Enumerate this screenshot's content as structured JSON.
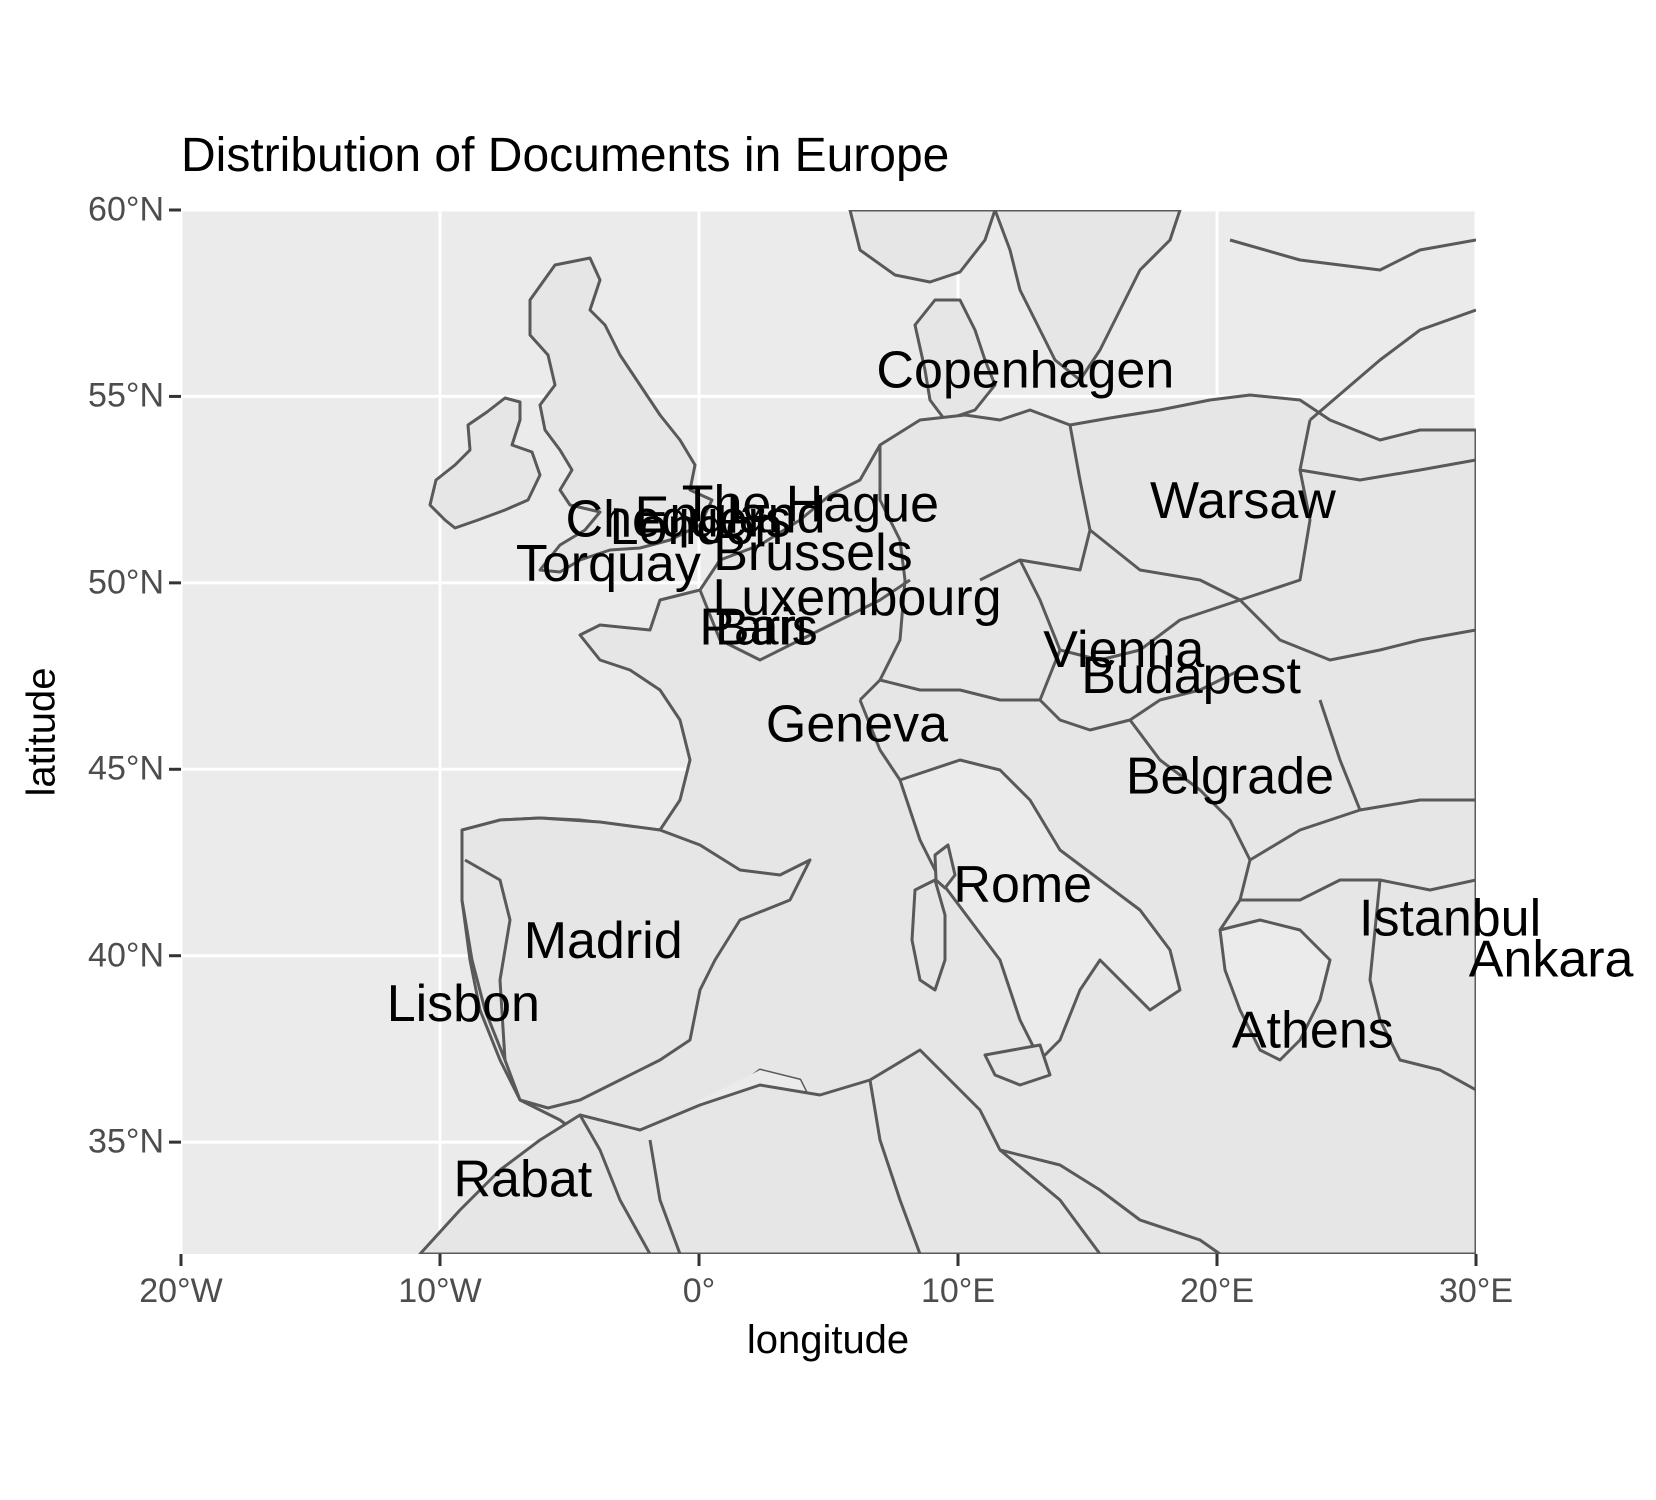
{
  "title": "Distribution of Documents in Europe",
  "xlabel": "longitude",
  "ylabel": "latitude",
  "colors": {
    "panel": "#ebebeb",
    "land": "#e6e6e6",
    "border": "#595959",
    "grid": "#ffffff",
    "tick_text": "#4d4d4d",
    "label_text": "#000000"
  },
  "map": {
    "xlim": [
      -20,
      30
    ],
    "ylim": [
      32,
      60
    ],
    "x_ticks": [
      {
        "value": -20,
        "label": "20°W"
      },
      {
        "value": -10,
        "label": "10°W"
      },
      {
        "value": 0,
        "label": "0°"
      },
      {
        "value": 10,
        "label": "10°E"
      },
      {
        "value": 20,
        "label": "20°E"
      },
      {
        "value": 30,
        "label": "30°E"
      }
    ],
    "y_ticks": [
      {
        "value": 35,
        "label": "35°N"
      },
      {
        "value": 40,
        "label": "40°N"
      },
      {
        "value": 45,
        "label": "45°N"
      },
      {
        "value": 50,
        "label": "50°N"
      },
      {
        "value": 55,
        "label": "55°N"
      },
      {
        "value": 60,
        "label": "60°N"
      }
    ],
    "cities": [
      {
        "name": "Copenhagen",
        "lon": 12.6,
        "lat": 55.7
      },
      {
        "name": "Warsaw",
        "lon": 21.0,
        "lat": 52.2
      },
      {
        "name": "The Hague",
        "lon": 4.3,
        "lat": 52.1
      },
      {
        "name": "England",
        "lon": 1.2,
        "lat": 51.8
      },
      {
        "name": "Chequers",
        "lon": -0.8,
        "lat": 51.7
      },
      {
        "name": "London",
        "lon": -0.1,
        "lat": 51.5
      },
      {
        "name": "Brussels",
        "lon": 4.4,
        "lat": 50.8
      },
      {
        "name": "Torquay",
        "lon": -3.5,
        "lat": 50.5
      },
      {
        "name": "Luxembourg",
        "lon": 6.1,
        "lat": 49.6
      },
      {
        "name": "Paris",
        "lon": 2.3,
        "lat": 48.8
      },
      {
        "name": "Bari",
        "lon": 2.4,
        "lat": 48.8
      },
      {
        "name": "Vienna",
        "lon": 16.4,
        "lat": 48.2
      },
      {
        "name": "Budapest",
        "lon": 19.0,
        "lat": 47.5
      },
      {
        "name": "Geneva",
        "lon": 6.1,
        "lat": 46.2
      },
      {
        "name": "Belgrade",
        "lon": 20.5,
        "lat": 44.8
      },
      {
        "name": "Rome",
        "lon": 12.5,
        "lat": 41.9
      },
      {
        "name": "Istanbul",
        "lon": 29.0,
        "lat": 41.0
      },
      {
        "name": "Ankara",
        "lon": 32.9,
        "lat": 39.9
      },
      {
        "name": "Madrid",
        "lon": -3.7,
        "lat": 40.4
      },
      {
        "name": "Lisbon",
        "lon": -9.1,
        "lat": 38.7
      },
      {
        "name": "Athens",
        "lon": 23.7,
        "lat": 38.0
      },
      {
        "name": "Rabat",
        "lon": -6.8,
        "lat": 34.0
      }
    ]
  }
}
